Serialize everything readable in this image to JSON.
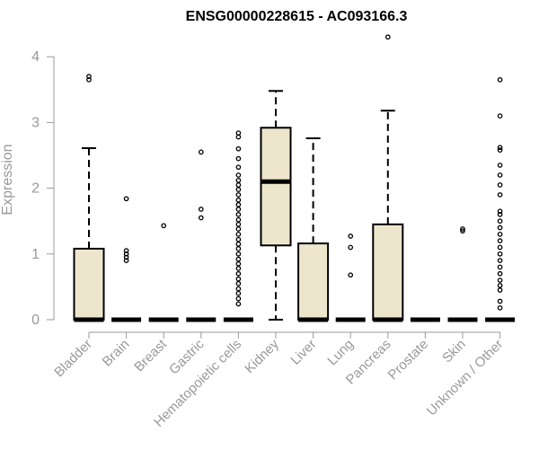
{
  "chart_data": {
    "type": "box",
    "title": "ENSG00000228615 - AC093166.3",
    "ylabel": "Expression",
    "xlabel": "",
    "ylim": [
      0,
      4.3
    ],
    "yticks": [
      0,
      1,
      2,
      3,
      4
    ],
    "ytick_labels": [
      "0",
      "1",
      "2",
      "3",
      "4"
    ],
    "grid": false,
    "box_fill": "#ede6cc",
    "box_stroke": "#000000",
    "axis_color": "#999999",
    "categories": [
      "Bladder",
      "Brain",
      "Breast",
      "Gastric",
      "Hematopoietic cells",
      "Kidney",
      "Liver",
      "Lung",
      "Pancreas",
      "Prostate",
      "Skin",
      "Unknown / Other"
    ],
    "boxes": [
      {
        "q1": 0,
        "median": 0,
        "q3": 1.08,
        "whisker_low": 0,
        "whisker_high": 2.61,
        "outliers": [
          3.65,
          3.7
        ]
      },
      {
        "q1": 0,
        "median": 0,
        "q3": 0,
        "whisker_low": 0,
        "whisker_high": 0,
        "outliers": [
          0.9,
          0.95,
          1.0,
          1.05,
          1.84
        ]
      },
      {
        "q1": 0,
        "median": 0,
        "q3": 0,
        "whisker_low": 0,
        "whisker_high": 0,
        "outliers": [
          1.43
        ]
      },
      {
        "q1": 0,
        "median": 0,
        "q3": 0,
        "whisker_low": 0,
        "whisker_high": 0,
        "outliers": [
          1.55,
          1.68,
          2.55
        ]
      },
      {
        "q1": 0,
        "median": 0,
        "q3": 0,
        "whisker_low": 0,
        "whisker_high": 0,
        "outliers": [
          0.24,
          0.32,
          0.4,
          0.47,
          0.55,
          0.62,
          0.7,
          0.78,
          0.85,
          0.92,
          1.0,
          1.08,
          1.15,
          1.22,
          1.3,
          1.38,
          1.45,
          1.52,
          1.6,
          1.68,
          1.75,
          1.82,
          1.9,
          1.98,
          2.05,
          2.12,
          2.2,
          2.32,
          2.45,
          2.6,
          2.78,
          2.84
        ]
      },
      {
        "q1": 1.13,
        "median": 2.1,
        "q3": 2.92,
        "whisker_low": 0,
        "whisker_high": 3.48,
        "outliers": []
      },
      {
        "q1": 0,
        "median": 0,
        "q3": 1.16,
        "whisker_low": 0,
        "whisker_high": 2.76,
        "outliers": []
      },
      {
        "q1": 0,
        "median": 0,
        "q3": 0,
        "whisker_low": 0,
        "whisker_high": 0,
        "outliers": [
          0.68,
          1.1,
          1.27
        ]
      },
      {
        "q1": 0,
        "median": 0,
        "q3": 1.45,
        "whisker_low": 0,
        "whisker_high": 3.18,
        "outliers": [
          4.3
        ]
      },
      {
        "q1": 0,
        "median": 0,
        "q3": 0,
        "whisker_low": 0,
        "whisker_high": 0,
        "outliers": []
      },
      {
        "q1": 0,
        "median": 0,
        "q3": 0,
        "whisker_low": 0,
        "whisker_high": 0,
        "outliers": [
          1.35,
          1.38
        ]
      },
      {
        "q1": 0,
        "median": 0,
        "q3": 0,
        "whisker_low": 0,
        "whisker_high": 0,
        "outliers": [
          0.18,
          0.28,
          0.45,
          0.52,
          0.6,
          0.7,
          0.8,
          0.9,
          1.0,
          1.1,
          1.2,
          1.3,
          1.4,
          1.5,
          1.6,
          1.65,
          1.9,
          2.05,
          2.2,
          2.35,
          2.58,
          2.62,
          3.1,
          3.65
        ]
      }
    ]
  }
}
